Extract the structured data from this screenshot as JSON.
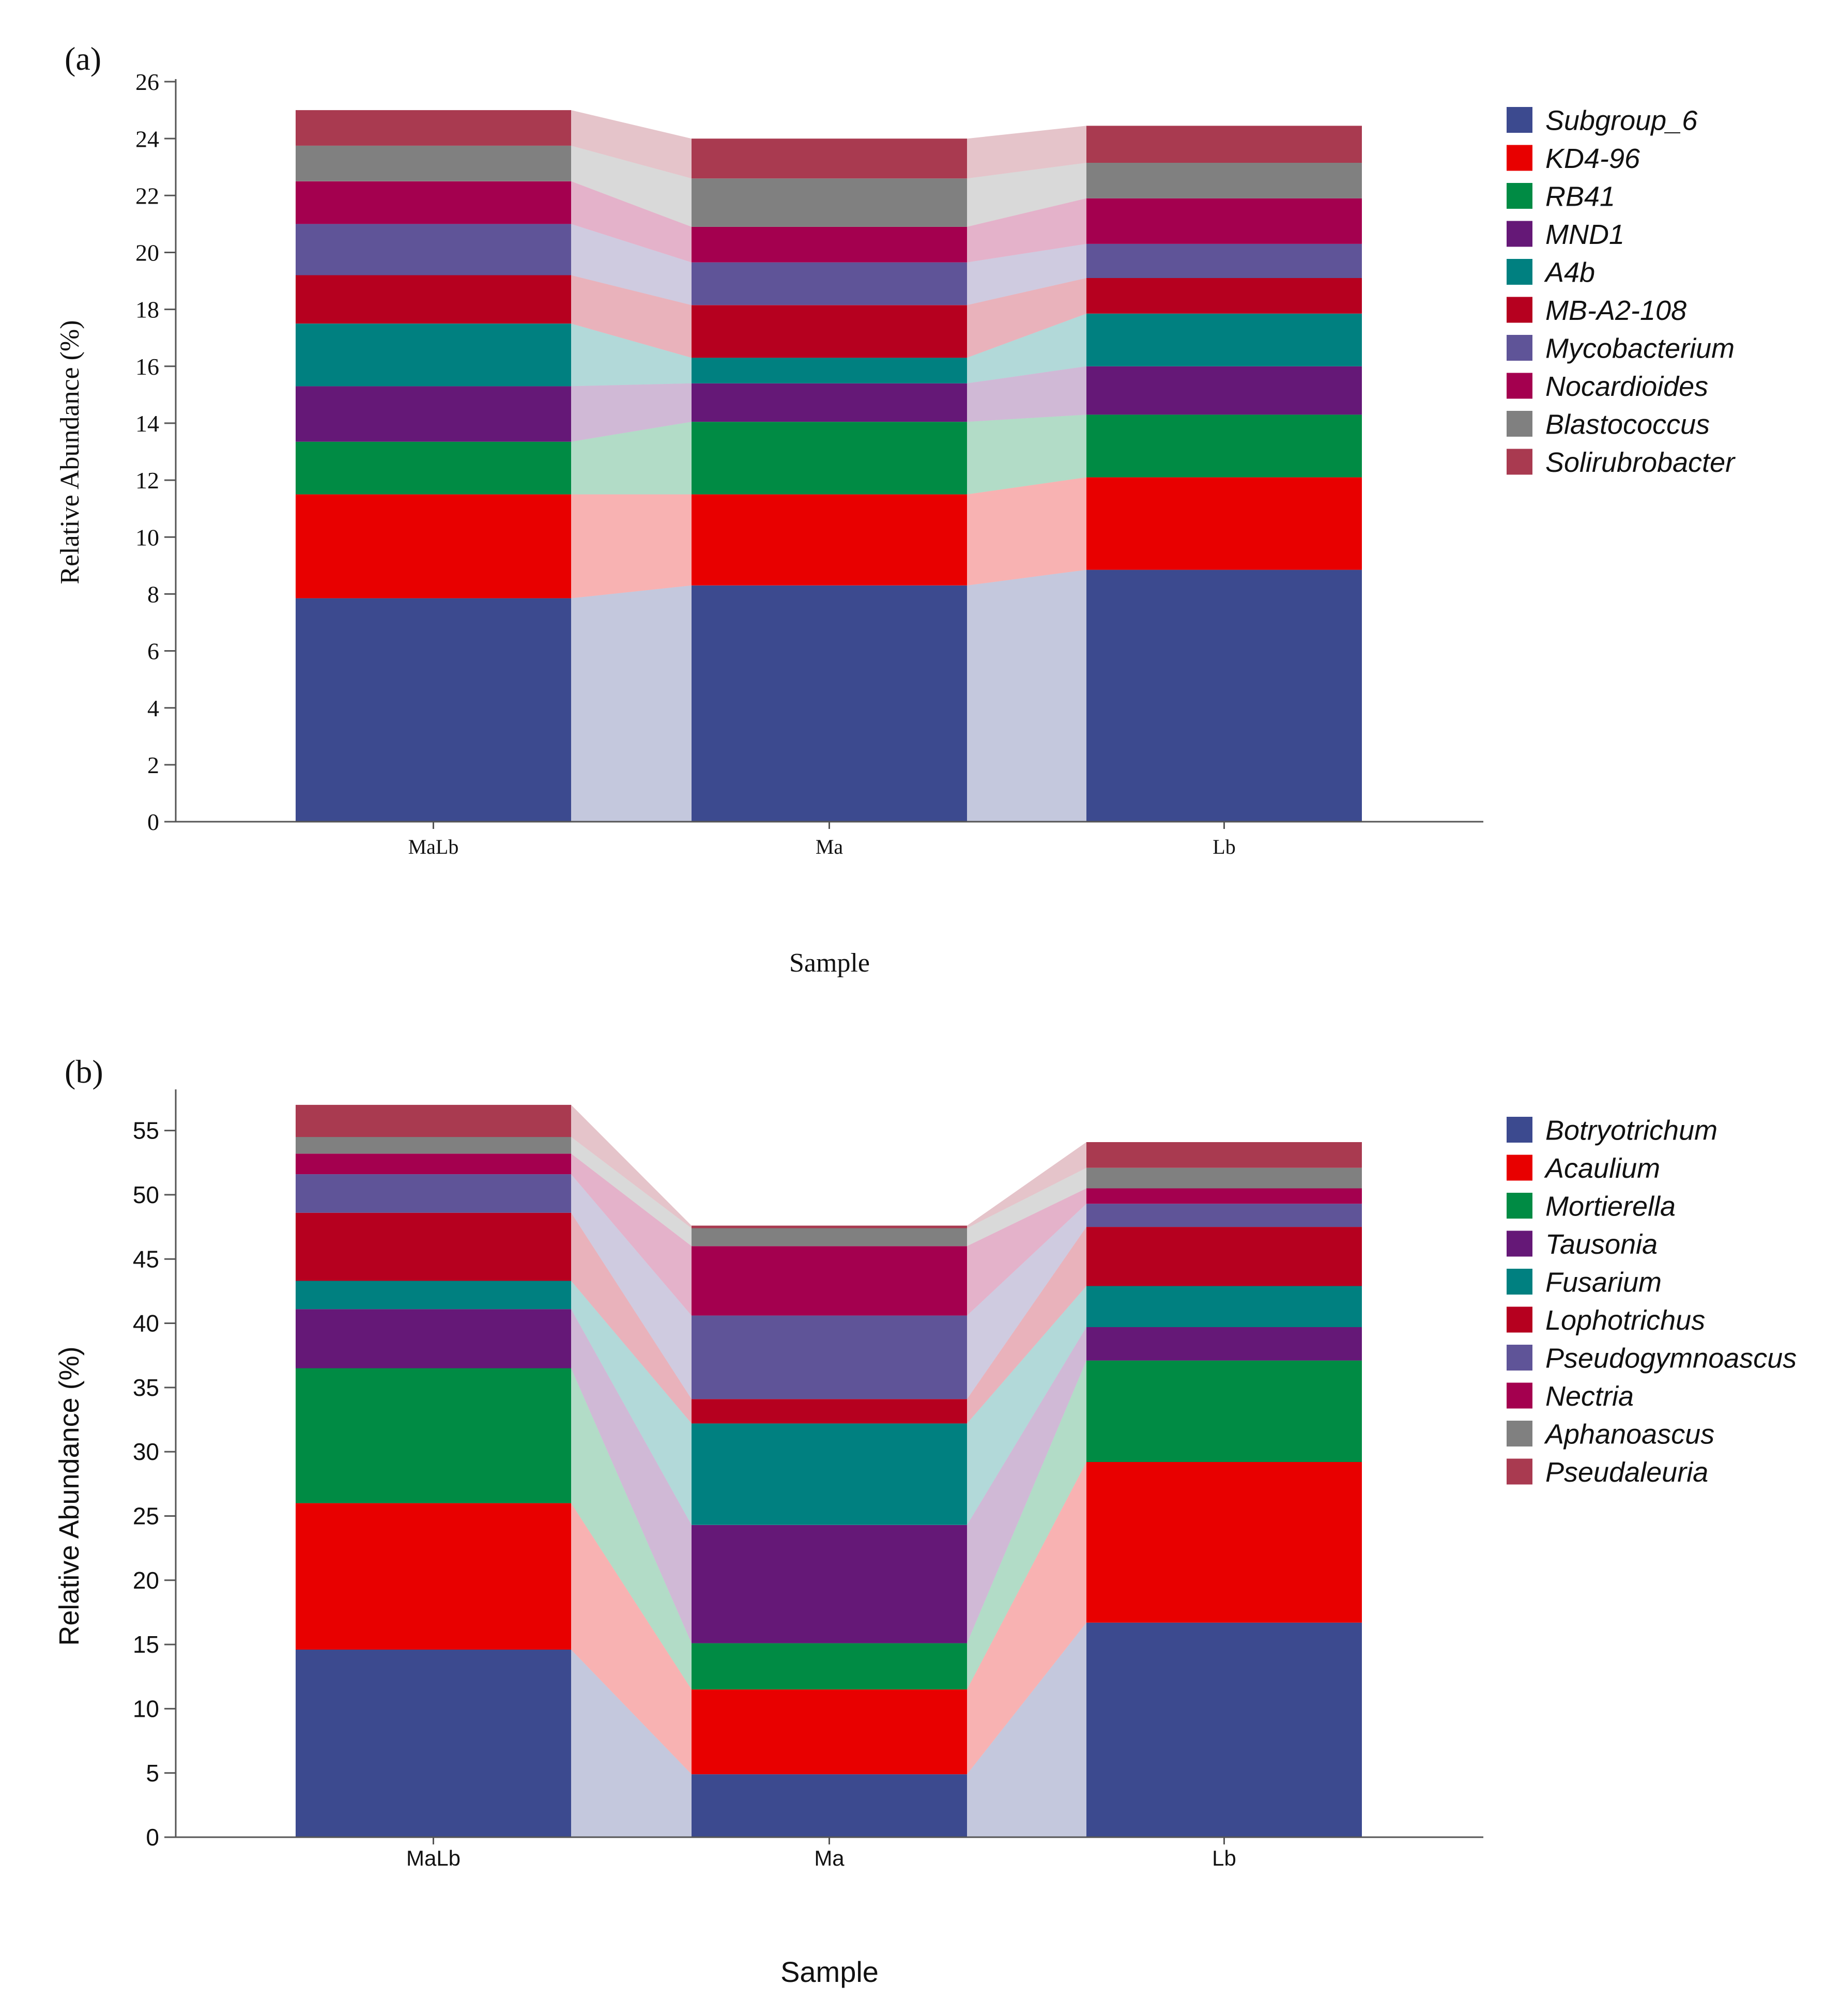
{
  "colors": [
    "#3c4a8f",
    "#e80000",
    "#008b44",
    "#651877",
    "#008080",
    "#b6001f",
    "#5f5498",
    "#a4004f",
    "#808080",
    "#a93a50"
  ],
  "chart_data": [
    {
      "panel_label": "(a)",
      "type": "bar",
      "stacked": true,
      "categories": [
        "MaLb",
        "Ma",
        "Lb"
      ],
      "xlabel": "Sample",
      "ylabel": "Relative Abundance (%)",
      "ylim": [
        0,
        26
      ],
      "yticks": [
        0,
        2,
        4,
        6,
        8,
        10,
        12,
        14,
        16,
        18,
        20,
        22,
        24,
        26
      ],
      "series": [
        {
          "name": "Subgroup_6",
          "values": [
            7.85,
            8.3,
            8.85
          ]
        },
        {
          "name": "KD4-96",
          "values": [
            3.65,
            3.2,
            3.25
          ]
        },
        {
          "name": "RB41",
          "values": [
            1.85,
            2.55,
            2.2
          ]
        },
        {
          "name": "MND1",
          "values": [
            1.95,
            1.35,
            1.7
          ]
        },
        {
          "name": "A4b",
          "values": [
            2.2,
            0.9,
            1.85
          ]
        },
        {
          "name": "MB-A2-108",
          "values": [
            1.7,
            1.85,
            1.25
          ]
        },
        {
          "name": "Mycobacterium",
          "values": [
            1.8,
            1.5,
            1.2
          ]
        },
        {
          "name": "Nocardioides",
          "values": [
            1.5,
            1.25,
            1.6
          ]
        },
        {
          "name": "Blastococcus",
          "values": [
            1.25,
            1.7,
            1.25
          ]
        },
        {
          "name": "Solirubrobacter",
          "values": [
            1.25,
            1.4,
            1.3
          ]
        }
      ]
    },
    {
      "panel_label": "(b)",
      "type": "bar",
      "stacked": true,
      "categories": [
        "MaLb",
        "Ma",
        "Lb"
      ],
      "xlabel": "Sample",
      "ylabel": "Relative Abundance (%)",
      "ylim": [
        0,
        58
      ],
      "yticks": [
        0,
        5,
        10,
        15,
        20,
        25,
        30,
        35,
        40,
        45,
        50,
        55
      ],
      "series": [
        {
          "name": "Botryotrichum",
          "values": [
            14.6,
            4.9,
            16.7
          ]
        },
        {
          "name": "Acaulium",
          "values": [
            11.4,
            6.6,
            12.5
          ]
        },
        {
          "name": "Mortierella",
          "values": [
            10.5,
            3.6,
            7.9
          ]
        },
        {
          "name": "Tausonia",
          "values": [
            4.6,
            9.2,
            2.6
          ]
        },
        {
          "name": "Fusarium",
          "values": [
            2.2,
            7.9,
            3.2
          ]
        },
        {
          "name": "Lophotrichus",
          "values": [
            5.3,
            1.9,
            4.6
          ]
        },
        {
          "name": "Pseudogymnoascus",
          "values": [
            3.0,
            6.5,
            1.8
          ]
        },
        {
          "name": "Nectria",
          "values": [
            1.6,
            5.4,
            1.2
          ]
        },
        {
          "name": "Aphanoascus",
          "values": [
            1.3,
            1.4,
            1.6
          ]
        },
        {
          "name": "Pseudaleuria",
          "values": [
            2.5,
            0.2,
            2.0
          ]
        }
      ]
    }
  ]
}
